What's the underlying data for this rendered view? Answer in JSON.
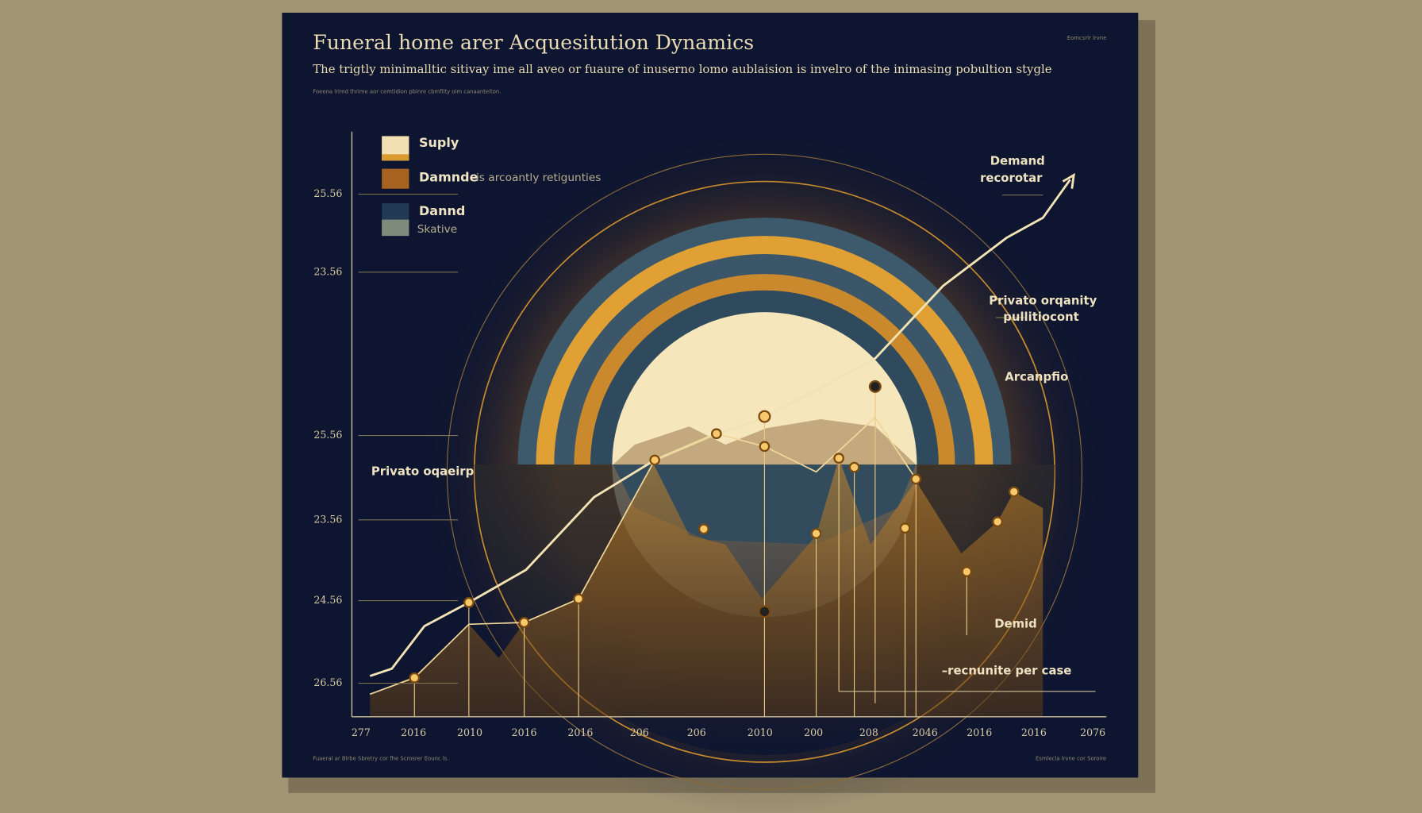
{
  "header": {
    "title": "Funeral home arer Acquesitution Dynamics",
    "subtitle": "The trigtly minimalltic sitivay ime all aveo or fuaure of inuserno lomo aublaision is invelro of the inimasing pobultion stygle",
    "note": "Foeena lrimd thrime aor cemtidion pbinre cbmfilty oim canaanteiton.",
    "corner_note": "Eomcsrlr lrvne",
    "footer_left": "Fuaeral ar Blrbe Sbretry cor fhe Scrosrer Eounc ls.",
    "footer_right": "Esmlecla lrvne cor Soroire"
  },
  "legend": [
    {
      "label": "Suply"
    },
    {
      "label": "Damnde",
      "sublabel": "is arcoantly retigunties"
    },
    {
      "label": "Dannd",
      "sublabel": "Skative"
    }
  ],
  "y_axis_labels": [
    "25.56",
    "23.56",
    "25.56",
    "23.56",
    "24.56",
    "26.56"
  ],
  "x_axis_labels": [
    "277",
    "2016",
    "2010",
    "2016",
    "2016",
    "206",
    "206",
    "2010",
    "200",
    "208",
    "2046",
    "2016",
    "2016",
    "2076"
  ],
  "annotations": {
    "demand_title": "Demand",
    "demand_sub": "recorotar",
    "private_1": "Privato orqanity",
    "private_2": "pullitiocont",
    "arcanpfio": "Arcanpfio",
    "private_left": "Privato oqaeirp",
    "demid": "Demid",
    "recnunite": "–recnunite per case"
  }
}
